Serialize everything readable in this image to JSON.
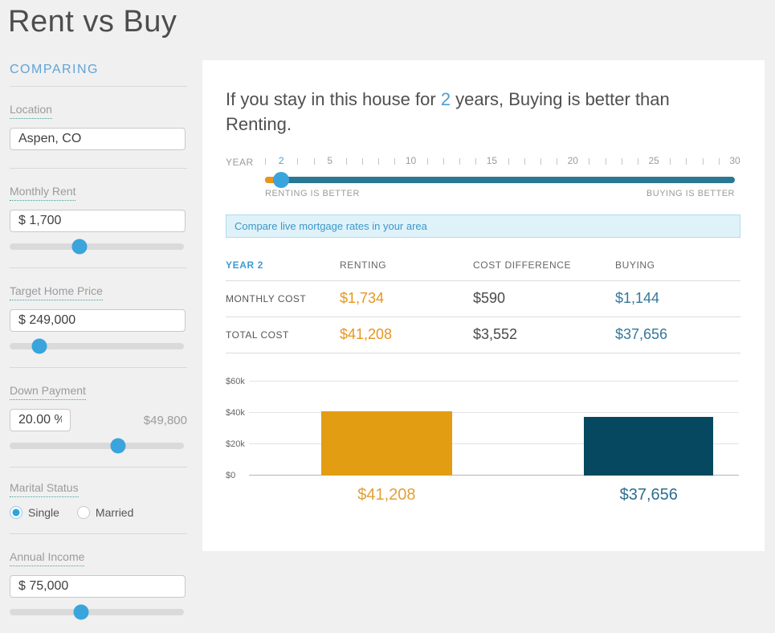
{
  "page": {
    "title": "Rent vs Buy"
  },
  "sidebar": {
    "heading": "COMPARING",
    "fields": {
      "location": {
        "label": "Location",
        "value": "Aspen, CO"
      },
      "monthly_rent": {
        "label": "Monthly Rent",
        "value": "$ 1,700",
        "slider_percent": 40
      },
      "target_home_price": {
        "label": "Target Home Price",
        "value": "$ 249,000",
        "slider_percent": 17
      },
      "down_payment": {
        "label": "Down Payment",
        "value": "20.00 %",
        "amount": "$49,800",
        "slider_percent": 62
      },
      "marital_status": {
        "label": "Marital Status",
        "options": [
          {
            "label": "Single",
            "selected": true
          },
          {
            "label": "Married",
            "selected": false
          }
        ]
      },
      "annual_income": {
        "label": "Annual Income",
        "value": "$ 75,000",
        "slider_percent": 41
      }
    }
  },
  "main": {
    "headline": {
      "prefix": "If you stay in this house for ",
      "years": "2",
      "suffix": " years, Buying is better than Renting."
    },
    "year_slider": {
      "label": "YEAR",
      "min": 1,
      "max": 30,
      "selected": 2,
      "labeled_ticks": [
        5,
        10,
        15,
        20,
        25,
        30
      ],
      "left_caption": "RENTING IS BETTER",
      "right_caption": "BUYING IS BETTER"
    },
    "banner": {
      "text": "Compare live mortgage rates in your area"
    },
    "table": {
      "header": [
        "YEAR 2",
        "RENTING",
        "COST DIFFERENCE",
        "BUYING"
      ],
      "rows": [
        {
          "label": "MONTHLY COST",
          "renting": "$1,734",
          "difference": "$590",
          "buying": "$1,144"
        },
        {
          "label": "TOTAL COST",
          "renting": "$41,208",
          "difference": "$3,552",
          "buying": "$37,656"
        }
      ]
    },
    "chart_data": {
      "type": "bar",
      "categories": [
        "Renting",
        "Buying"
      ],
      "values": [
        41208,
        37656
      ],
      "value_labels": [
        "$41,208",
        "$37,656"
      ],
      "colors": [
        "#E39D13",
        "#05485F"
      ],
      "label_colors": [
        "#E0A03A",
        "#2D6E8E"
      ],
      "title": "",
      "xlabel": "",
      "ylabel": "",
      "ylim": [
        0,
        60000
      ],
      "yticks": [
        0,
        20000,
        40000,
        60000
      ],
      "ytick_labels": [
        "$0",
        "$20k",
        "$40k",
        "$60k"
      ],
      "grid": true,
      "legend": false
    }
  }
}
